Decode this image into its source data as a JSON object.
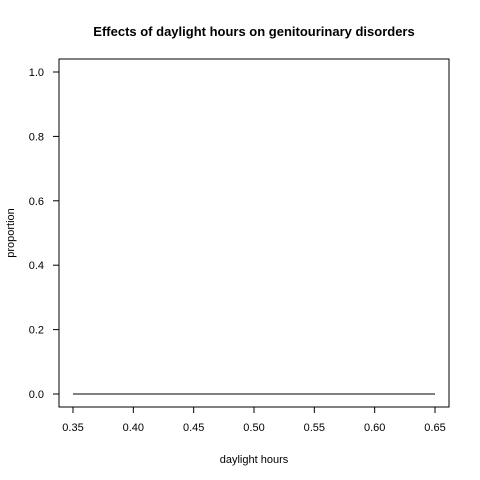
{
  "chart_data": {
    "type": "line",
    "title": "Effects of daylight hours on genitourinary disorders",
    "xlabel": "daylight hours",
    "ylabel": "proportion",
    "xlim": [
      0.35,
      0.65
    ],
    "ylim": [
      0.0,
      1.0
    ],
    "x_ticks": [
      "0.35",
      "0.40",
      "0.45",
      "0.50",
      "0.55",
      "0.60",
      "0.65"
    ],
    "y_ticks": [
      "0.0",
      "0.2",
      "0.4",
      "0.6",
      "0.8",
      "1.0"
    ],
    "grid": false,
    "legend": "none",
    "series": [
      {
        "x": [
          0.35,
          0.65
        ],
        "y": [
          0.0,
          0.0
        ],
        "color": "#000000"
      }
    ]
  }
}
